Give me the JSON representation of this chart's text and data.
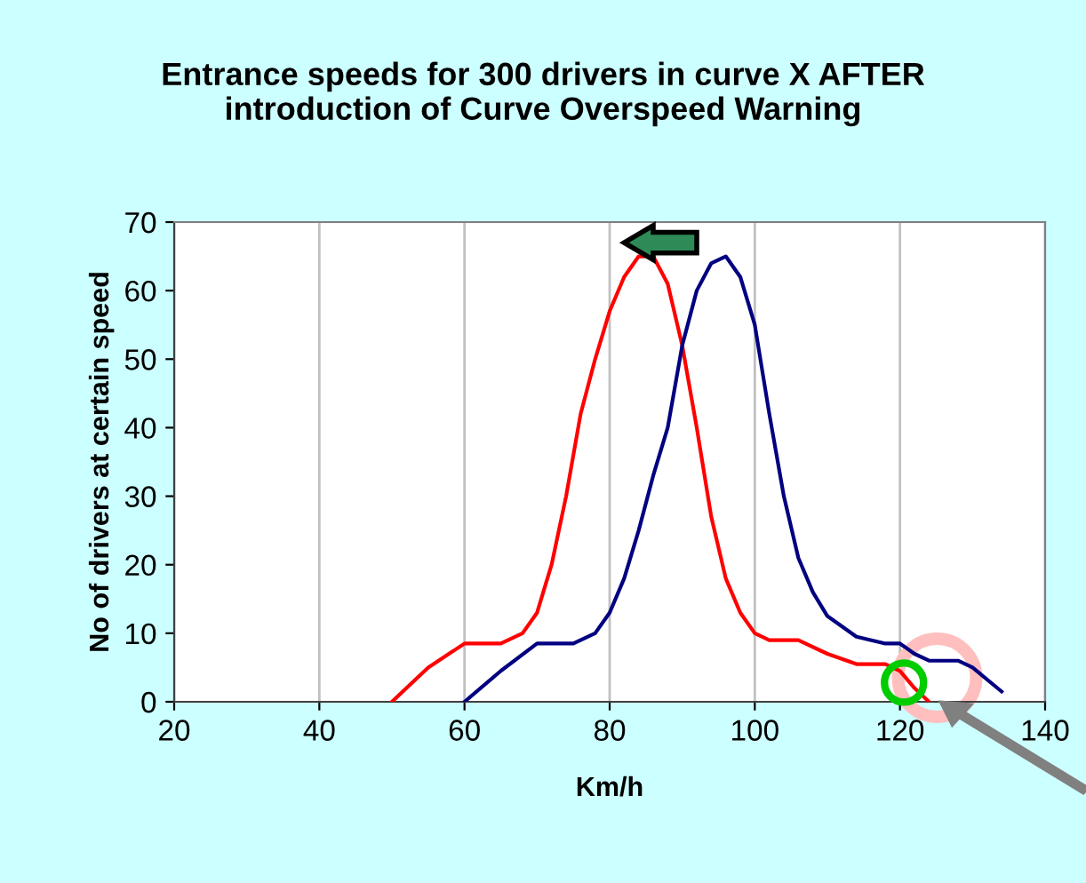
{
  "chart_data": {
    "type": "line",
    "title": "Entrance speeds for 300 drivers in curve X AFTER\nintroduction of Curve Overspeed Warning",
    "xlabel": "Km/h",
    "ylabel": "No of drivers at certain speed",
    "series": [
      {
        "color": "#ff0000",
        "x": [
          50,
          55,
          60,
          65,
          68,
          70,
          72,
          74,
          76,
          78,
          80,
          82,
          84,
          86,
          88,
          90,
          92,
          94,
          96,
          98,
          100,
          102,
          106,
          110,
          114,
          118,
          120,
          122,
          124
        ],
        "values": [
          0,
          5,
          8.5,
          8.5,
          10,
          13,
          20,
          30,
          42,
          50,
          57,
          62,
          65,
          65,
          61,
          52,
          40,
          27,
          18,
          13,
          10,
          9,
          9,
          7,
          5.5,
          5.5,
          4.5,
          2,
          0
        ]
      },
      {
        "color": "#000080",
        "x": [
          60,
          65,
          70,
          75,
          78,
          80,
          82,
          84,
          86,
          88,
          90,
          92,
          94,
          96,
          98,
          100,
          102,
          104,
          106,
          108,
          110,
          114,
          118,
          120,
          122,
          124,
          128,
          130,
          134
        ],
        "values": [
          0,
          4.5,
          8.5,
          8.5,
          10,
          13,
          18,
          25,
          33,
          40,
          52,
          60,
          64,
          65,
          62,
          55,
          42,
          30,
          21,
          16,
          12.5,
          9.5,
          8.5,
          8.5,
          7,
          6,
          6,
          5,
          1.5
        ]
      }
    ],
    "xlim": [
      20,
      140
    ],
    "xticks": [
      20,
      40,
      60,
      80,
      100,
      120,
      140
    ],
    "ylim": [
      0,
      70
    ],
    "yticks": [
      0,
      10,
      20,
      30,
      40,
      50,
      60,
      70
    ],
    "grid": "x",
    "marker": "none",
    "line_style": "solid",
    "legend": false
  }
}
